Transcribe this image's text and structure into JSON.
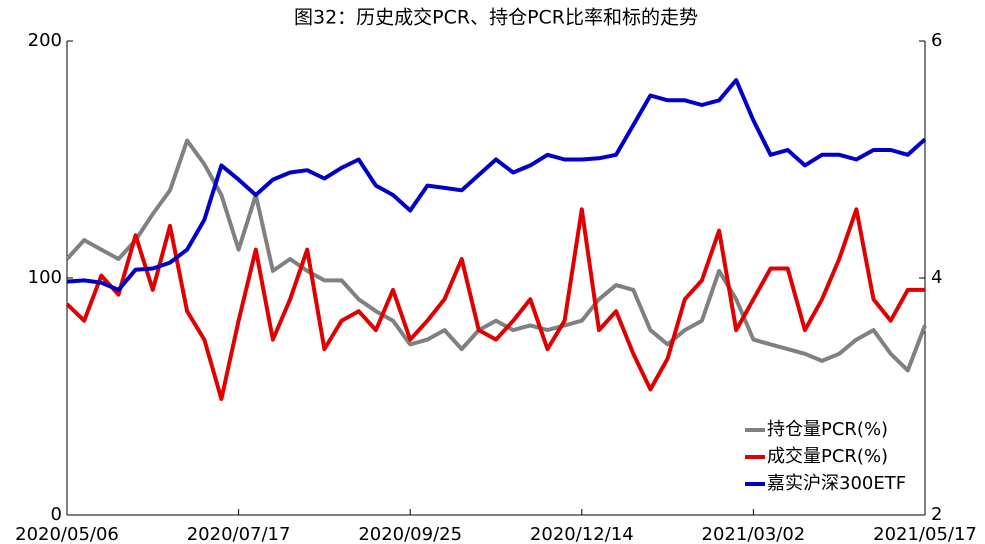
{
  "chart_data": {
    "type": "line",
    "title": "图32：历史成交PCR、持仓PCR比率和标的走势",
    "categories": [
      "2020/05/06",
      null,
      null,
      null,
      null,
      null,
      null,
      null,
      null,
      null,
      "2020/07/17",
      null,
      null,
      null,
      null,
      null,
      null,
      null,
      null,
      null,
      "2020/09/25",
      null,
      null,
      null,
      null,
      null,
      null,
      null,
      null,
      null,
      "2020/12/14",
      null,
      null,
      null,
      null,
      null,
      null,
      null,
      null,
      null,
      "2021/03/02",
      null,
      null,
      null,
      null,
      null,
      null,
      null,
      null,
      null,
      "2021/05/17"
    ],
    "ylim": [
      0,
      200
    ],
    "yticks": [
      0,
      100,
      200
    ],
    "y2lim": [
      2,
      6
    ],
    "y2ticks": [
      2,
      4,
      6
    ],
    "legend": "lower right",
    "series": [
      {
        "name": "持仓量PCR(%)",
        "color": "#808080",
        "values": [
          108,
          116,
          112,
          108,
          116,
          127,
          137,
          158,
          148,
          135,
          112,
          135,
          103,
          108,
          103,
          99,
          99,
          91,
          86,
          82,
          72,
          74,
          78,
          70,
          78,
          82,
          78,
          80,
          78,
          80,
          82,
          91,
          97,
          95,
          78,
          72,
          78,
          82,
          103,
          91,
          74,
          72,
          70,
          68,
          65,
          68,
          74,
          78,
          68,
          61,
          80
        ]
      },
      {
        "name": "成交量PCR(%)",
        "color": "#e00000",
        "values": [
          89,
          82,
          101,
          93,
          118,
          95,
          122,
          86,
          74,
          49,
          82,
          112,
          74,
          91,
          112,
          70,
          82,
          86,
          78,
          95,
          74,
          82,
          91,
          108,
          78,
          74,
          82,
          91,
          70,
          82,
          129,
          78,
          86,
          68,
          53,
          66,
          91,
          99,
          120,
          78,
          91,
          104,
          104,
          78,
          91,
          108,
          129,
          91,
          82,
          95,
          95
        ]
      },
      {
        "name": "嘉实沪深300ETF",
        "color": "#0000c8",
        "axis": "y2",
        "values": [
          3.97,
          3.98,
          3.96,
          3.9,
          4.07,
          4.08,
          4.13,
          4.24,
          4.49,
          4.95,
          4.83,
          4.7,
          4.83,
          4.89,
          4.91,
          4.84,
          4.93,
          5.0,
          4.78,
          4.7,
          4.57,
          4.78,
          4.76,
          4.74,
          4.87,
          5.0,
          4.89,
          4.95,
          5.04,
          5.0,
          5.0,
          5.01,
          5.04,
          5.29,
          5.54,
          5.5,
          5.5,
          5.46,
          5.5,
          5.67,
          5.33,
          5.04,
          5.08,
          4.95,
          5.04,
          5.04,
          5.0,
          5.08,
          5.08,
          5.04,
          5.17
        ]
      }
    ]
  }
}
